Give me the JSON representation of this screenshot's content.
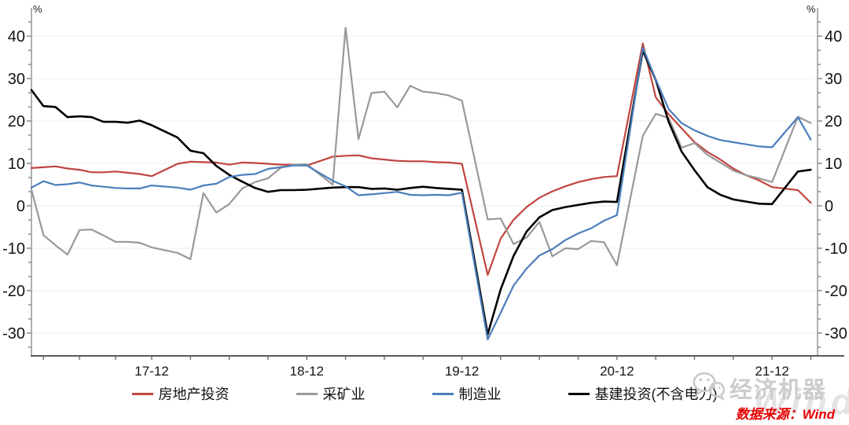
{
  "chart_data": {
    "type": "line",
    "title": "",
    "xlabel": "",
    "ylabel": "%",
    "ylim": [
      -35.5,
      44.8
    ],
    "grid": "horizontal",
    "legend_position": "bottom",
    "y_ticks": [
      40,
      30,
      20,
      10,
      0,
      -10,
      -20,
      -30
    ],
    "x_tick_labels": [
      "17-12",
      "18-12",
      "19-12",
      "20-12",
      "21-12"
    ],
    "x": [
      "17-02",
      "17-03",
      "17-04",
      "17-05",
      "17-06",
      "17-07",
      "17-08",
      "17-09",
      "17-10",
      "17-11",
      "17-12",
      "18-02",
      "18-03",
      "18-04",
      "18-05",
      "18-06",
      "18-07",
      "18-08",
      "18-09",
      "18-10",
      "18-11",
      "18-12",
      "19-02",
      "19-03",
      "19-04",
      "19-05",
      "19-06",
      "19-07",
      "19-08",
      "19-09",
      "19-10",
      "19-11",
      "19-12",
      "20-02",
      "20-03",
      "20-04",
      "20-05",
      "20-06",
      "20-07",
      "20-08",
      "20-09",
      "20-10",
      "20-11",
      "20-12",
      "21-02",
      "21-03",
      "21-04",
      "21-05",
      "21-06",
      "21-07",
      "21-08",
      "21-09",
      "21-10",
      "21-11",
      "21-12",
      "22-02",
      "22-03"
    ],
    "series": [
      {
        "id": "real-estate",
        "name": "房地产投资",
        "color": "#c0453f",
        "width": 2.2,
        "values": [
          8.9,
          9.1,
          9.3,
          8.8,
          8.5,
          7.9,
          7.9,
          8.1,
          7.8,
          7.5,
          7.0,
          9.9,
          10.4,
          10.3,
          10.2,
          9.7,
          10.2,
          10.1,
          9.9,
          9.7,
          9.7,
          9.5,
          11.6,
          11.8,
          11.9,
          11.2,
          10.9,
          10.6,
          10.5,
          10.5,
          10.3,
          10.2,
          9.9,
          -16.3,
          -7.7,
          -3.3,
          -0.3,
          1.9,
          3.4,
          4.6,
          5.6,
          6.3,
          6.8,
          7.0,
          38.3,
          25.6,
          21.6,
          18.3,
          15.0,
          12.7,
          10.9,
          8.8,
          7.2,
          6.0,
          4.4,
          3.7,
          0.7
        ]
      },
      {
        "id": "mining",
        "name": "采矿业",
        "color": "#999999",
        "width": 2.2,
        "values": [
          3.8,
          -6.9,
          -9.3,
          -11.5,
          -5.7,
          -5.6,
          -7.0,
          -8.5,
          -8.5,
          -8.7,
          -9.8,
          -11.1,
          -12.6,
          3.0,
          -1.6,
          0.4,
          4.1,
          5.6,
          6.5,
          9.0,
          9.7,
          9.8,
          5.0,
          42.0,
          15.7,
          26.6,
          26.9,
          23.2,
          28.3,
          26.9,
          26.6,
          26.0,
          24.8,
          -3.2,
          -3.0,
          -9.0,
          -7.5,
          -3.8,
          -11.9,
          -10.0,
          -10.2,
          -8.3,
          -8.6,
          -14.0,
          16.5,
          21.7,
          20.7,
          13.7,
          14.8,
          12.0,
          10.2,
          8.3,
          7.2,
          6.5,
          5.6,
          21.0,
          19.5
        ]
      },
      {
        "id": "manufacturing",
        "name": "制造业",
        "color": "#4a7ebb",
        "width": 2.2,
        "values": [
          4.3,
          5.8,
          4.9,
          5.1,
          5.5,
          4.8,
          4.5,
          4.2,
          4.1,
          4.1,
          4.8,
          4.3,
          3.8,
          4.8,
          5.2,
          6.8,
          7.3,
          7.5,
          8.7,
          9.1,
          9.5,
          9.5,
          5.9,
          4.6,
          2.5,
          2.7,
          3.0,
          3.3,
          2.6,
          2.5,
          2.6,
          2.5,
          3.1,
          -31.5,
          -25.2,
          -18.8,
          -14.8,
          -11.7,
          -10.2,
          -8.1,
          -6.5,
          -5.3,
          -3.5,
          -2.2,
          37.3,
          29.8,
          22.8,
          19.5,
          17.8,
          16.5,
          15.5,
          15.0,
          14.5,
          14.0,
          13.8,
          20.9,
          15.6
        ]
      },
      {
        "id": "infrastructure",
        "name": "基建投资(不含电力)",
        "color": "#000000",
        "width": 2.6,
        "values": [
          27.3,
          23.5,
          23.3,
          20.9,
          21.1,
          20.9,
          19.8,
          19.8,
          19.6,
          20.1,
          19.0,
          16.1,
          13.0,
          12.4,
          9.4,
          7.3,
          5.7,
          4.2,
          3.3,
          3.7,
          3.7,
          3.8,
          4.3,
          4.4,
          4.4,
          4.0,
          4.1,
          3.8,
          4.2,
          4.5,
          4.2,
          4.0,
          3.8,
          -30.3,
          -19.7,
          -11.8,
          -6.1,
          -2.7,
          -1.0,
          -0.3,
          0.2,
          0.7,
          1.0,
          0.9,
          36.6,
          29.7,
          19.8,
          12.8,
          8.4,
          4.4,
          2.6,
          1.5,
          1.0,
          0.5,
          0.4,
          8.1,
          8.5
        ]
      }
    ]
  },
  "annotations": {
    "left_unit": "%",
    "right_unit": "%",
    "source": "数据来源：Wind",
    "watermark_brand": "经济机器",
    "watermark_wind": "Wind"
  },
  "style": {
    "gridline_color": "#efecec",
    "side_axis_color": "#9b9b9b",
    "bottom_axis_color": "#595959",
    "tick_color": "#6b6b6b"
  }
}
